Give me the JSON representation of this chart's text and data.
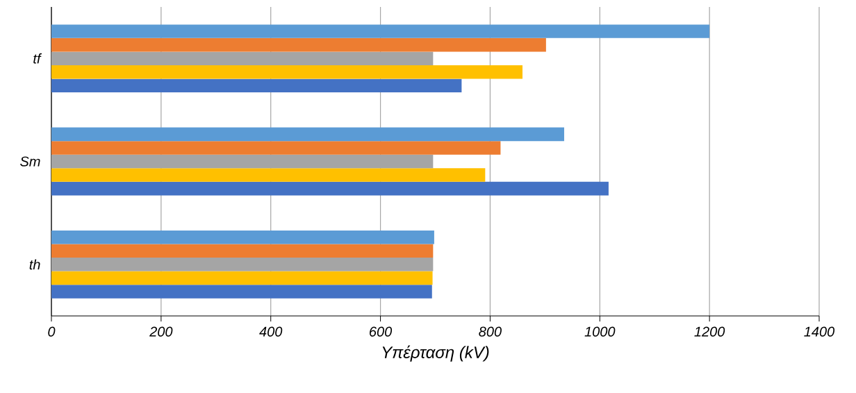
{
  "chart_data": {
    "type": "bar",
    "orientation": "horizontal",
    "xlabel": "Υπέρταση (kV)",
    "categories": [
      "tf",
      "Sm",
      "th"
    ],
    "series": [
      {
        "color": "#4472c4",
        "values": [
          748,
          1016,
          694
        ]
      },
      {
        "color": "#ffc000",
        "values": [
          859,
          791,
          695
        ]
      },
      {
        "color": "#a5a5a5",
        "values": [
          696,
          696,
          696
        ]
      },
      {
        "color": "#ed7d31",
        "values": [
          902,
          819,
          696
        ]
      },
      {
        "color": "#5b9bd5",
        "values": [
          1200,
          935,
          698
        ]
      }
    ],
    "xlim": [
      0,
      1400
    ],
    "xticks": [
      0,
      200,
      400,
      600,
      800,
      1000,
      1200,
      1400
    ],
    "grid": "x"
  }
}
